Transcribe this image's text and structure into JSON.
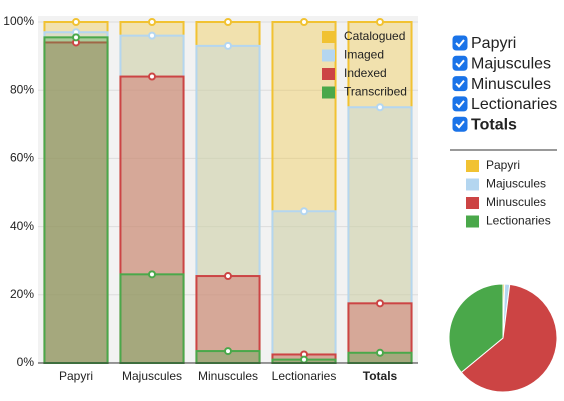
{
  "chart_data": [
    {
      "type": "bar",
      "categories": [
        "Papyri",
        "Majuscules",
        "Minuscules",
        "Lectionaries",
        "Totals"
      ],
      "series": [
        {
          "name": "Catalogued",
          "color": "#f1c232",
          "values": [
            100,
            100,
            100,
            100,
            100
          ]
        },
        {
          "name": "Imaged",
          "color": "#b4d6f0",
          "values": [
            97,
            96,
            93,
            44.5,
            75
          ]
        },
        {
          "name": "Indexed",
          "color": "#cc4444",
          "values": [
            94,
            84,
            25.5,
            2.5,
            17.5
          ]
        },
        {
          "name": "Transcribed",
          "color": "#4aa84a",
          "values": [
            95.5,
            26,
            3.5,
            1,
            3
          ]
        }
      ],
      "ylim": [
        0,
        100
      ],
      "yticks": [
        {
          "value": 0,
          "label": "0%"
        },
        {
          "value": 20,
          "label": "20%"
        },
        {
          "value": 40,
          "label": "40%"
        },
        {
          "value": 60,
          "label": "60%"
        },
        {
          "value": 80,
          "label": "80%"
        },
        {
          "value": 100,
          "label": "100%"
        }
      ],
      "grid": true,
      "legend": "top-right"
    },
    {
      "type": "pie",
      "categories": [
        "Papyri",
        "Majuscules",
        "Minuscules",
        "Lectionaries"
      ],
      "colors": [
        "#f1c232",
        "#b4d6f0",
        "#cc4444",
        "#4aa84a"
      ],
      "values": [
        0.5,
        1.5,
        62,
        36
      ]
    }
  ],
  "controls": {
    "checkboxes": [
      {
        "label": "Papyri",
        "checked": true
      },
      {
        "label": "Majuscules",
        "checked": true
      },
      {
        "label": "Minuscules",
        "checked": true
      },
      {
        "label": "Lectionaries",
        "checked": true
      },
      {
        "label": "Totals",
        "checked": true
      }
    ]
  }
}
